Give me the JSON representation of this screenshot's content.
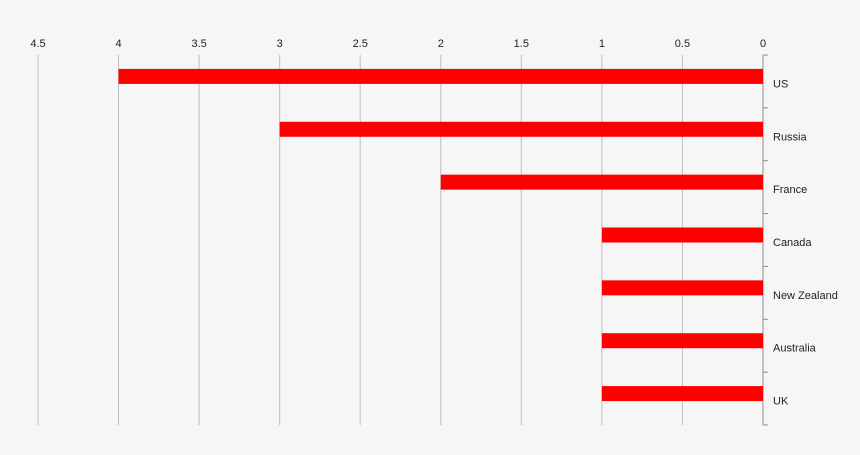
{
  "chart_data": {
    "type": "bar",
    "orientation": "horizontal",
    "x_axis_reversed": true,
    "x_axis_position": "top",
    "category_axis_position": "right",
    "categories": [
      "US",
      "Russia",
      "France",
      "Canada",
      "New Zealand",
      "Australia",
      "UK"
    ],
    "values": [
      4,
      3,
      2,
      1,
      1,
      1,
      1
    ],
    "xlim": [
      0,
      4.5
    ],
    "x_ticks": [
      "4.5",
      "4",
      "3.5",
      "3",
      "2.5",
      "2",
      "1.5",
      "1",
      "0.5",
      "0"
    ],
    "grid": true,
    "legend": "none",
    "colors": {
      "bar": "#ff0000",
      "grid": "#bfbfbf",
      "axis": "#8c8c8c",
      "background": "#f6f6f6"
    },
    "title": "",
    "xlabel": "",
    "ylabel": ""
  }
}
